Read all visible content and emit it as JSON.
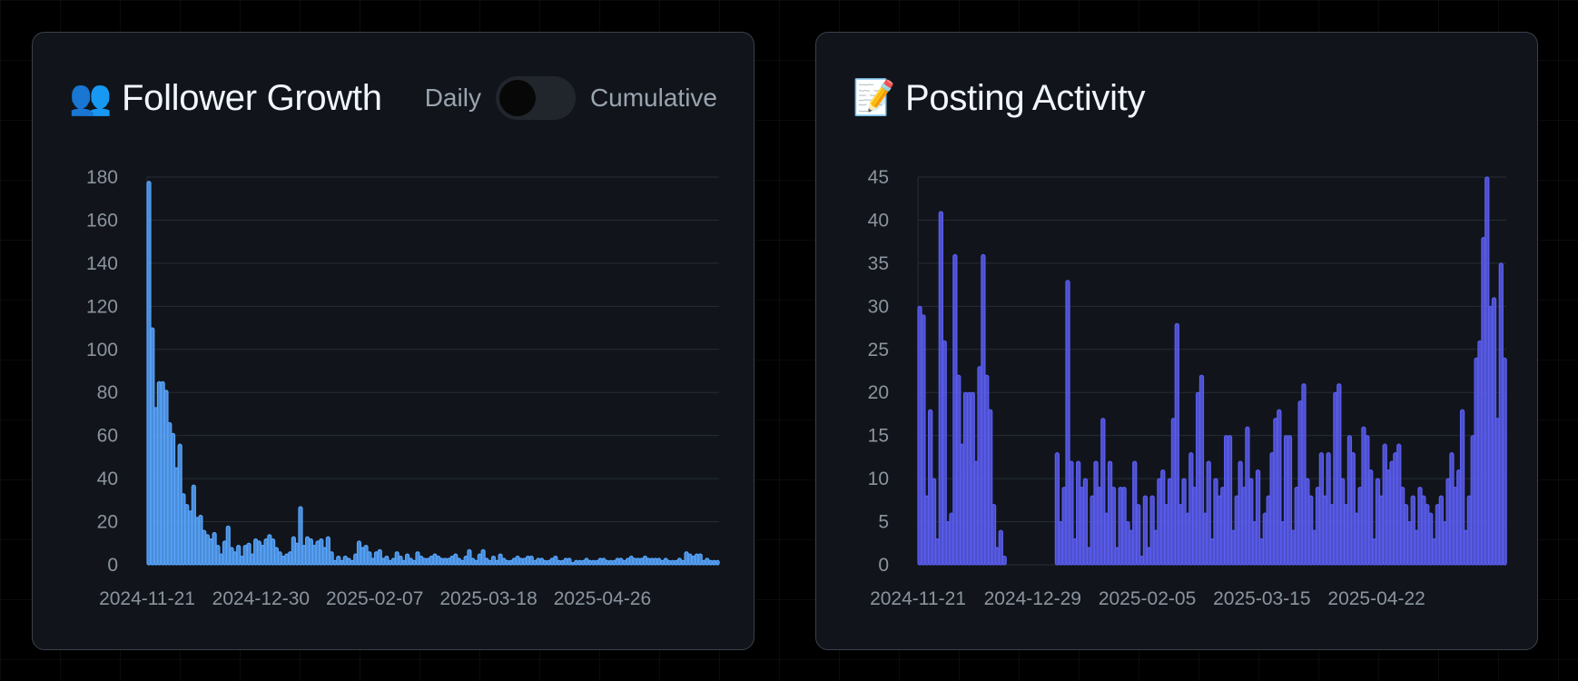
{
  "followers_card": {
    "emoji": "👥",
    "title": "Follower Growth",
    "toggle": {
      "left_label": "Daily",
      "right_label": "Cumulative",
      "state": "Daily"
    }
  },
  "posting_card": {
    "emoji": "📝",
    "title": "Posting Activity"
  },
  "colors": {
    "followers_bar": "#58a6ff",
    "posting_bar": "#5b5ef2",
    "grid": "#262c35",
    "card_bg": "#11151b"
  },
  "chart_data": [
    {
      "type": "bar",
      "title": "Follower Growth",
      "y_ticks": [
        0,
        20,
        40,
        60,
        80,
        100,
        120,
        140,
        160,
        180
      ],
      "ylim": [
        0,
        180
      ],
      "x_tick_labels": [
        "2024-11-21",
        "2024-12-30",
        "2025-02-07",
        "2025-03-18",
        "2025-04-26"
      ],
      "x_start": "2024-11-21",
      "x_end": "2025-06-04",
      "grid": "horizontal",
      "values": [
        178,
        110,
        73,
        85,
        85,
        81,
        66,
        61,
        45,
        56,
        33,
        28,
        25,
        37,
        22,
        23,
        16,
        14,
        12,
        15,
        9,
        5,
        11,
        18,
        8,
        6,
        9,
        4,
        9,
        10,
        5,
        12,
        11,
        9,
        12,
        14,
        12,
        8,
        6,
        4,
        5,
        6,
        13,
        10,
        27,
        9,
        13,
        12,
        9,
        11,
        12,
        8,
        13,
        6,
        2,
        4,
        2,
        4,
        3,
        2,
        5,
        11,
        8,
        9,
        6,
        3,
        6,
        7,
        3,
        4,
        2,
        3,
        6,
        4,
        2,
        5,
        3,
        2,
        6,
        4,
        3,
        3,
        4,
        5,
        4,
        3,
        3,
        3,
        4,
        5,
        3,
        2,
        4,
        7,
        3,
        2,
        5,
        7,
        3,
        2,
        4,
        2,
        5,
        3,
        2,
        2,
        3,
        4,
        3,
        3,
        4,
        4,
        2,
        3,
        3,
        2,
        2,
        3,
        4,
        2,
        2,
        3,
        3,
        1,
        2,
        2,
        2,
        3,
        2,
        2,
        2,
        3,
        3,
        2,
        2,
        2,
        3,
        3,
        2,
        3,
        4,
        3,
        3,
        3,
        4,
        3,
        3,
        3,
        3,
        2,
        3,
        2,
        2,
        2,
        3,
        2,
        6,
        5,
        4,
        5,
        5,
        2,
        3,
        2,
        2,
        2
      ]
    },
    {
      "type": "bar",
      "title": "Posting Activity",
      "y_ticks": [
        0,
        5,
        10,
        15,
        20,
        25,
        30,
        35,
        40,
        45
      ],
      "ylim": [
        0,
        45
      ],
      "x_tick_labels": [
        "2024-11-21",
        "2024-12-29",
        "2025-02-05",
        "2025-03-15",
        "2025-04-22"
      ],
      "x_start": "2024-11-21",
      "x_end": "2025-06-03",
      "grid": "horizontal",
      "values": [
        30,
        29,
        8,
        18,
        10,
        3,
        41,
        26,
        5,
        6,
        36,
        22,
        14,
        20,
        20,
        20,
        12,
        23,
        36,
        22,
        18,
        7,
        2,
        4,
        1,
        0,
        0,
        0,
        0,
        0,
        0,
        0,
        0,
        0,
        0,
        0,
        0,
        0,
        0,
        13,
        5,
        9,
        33,
        12,
        3,
        12,
        9,
        10,
        2,
        8,
        12,
        9,
        17,
        6,
        12,
        9,
        2,
        9,
        9,
        5,
        4,
        12,
        7,
        1,
        8,
        2,
        8,
        4,
        10,
        11,
        7,
        10,
        17,
        28,
        7,
        10,
        6,
        13,
        9,
        20,
        22,
        6,
        12,
        3,
        10,
        8,
        9,
        15,
        15,
        4,
        8,
        12,
        9,
        16,
        10,
        5,
        11,
        3,
        6,
        8,
        13,
        17,
        18,
        5,
        15,
        15,
        4,
        9,
        19,
        21,
        10,
        8,
        4,
        9,
        13,
        8,
        13,
        7,
        20,
        21,
        10,
        7,
        15,
        13,
        6,
        9,
        16,
        15,
        11,
        3,
        10,
        8,
        14,
        11,
        12,
        13,
        14,
        9,
        7,
        5,
        8,
        4,
        9,
        8,
        7,
        6,
        3,
        7,
        8,
        5,
        10,
        13,
        9,
        11,
        18,
        4,
        8,
        15,
        24,
        26,
        38,
        45,
        30,
        31,
        17,
        35,
        24
      ]
    }
  ]
}
